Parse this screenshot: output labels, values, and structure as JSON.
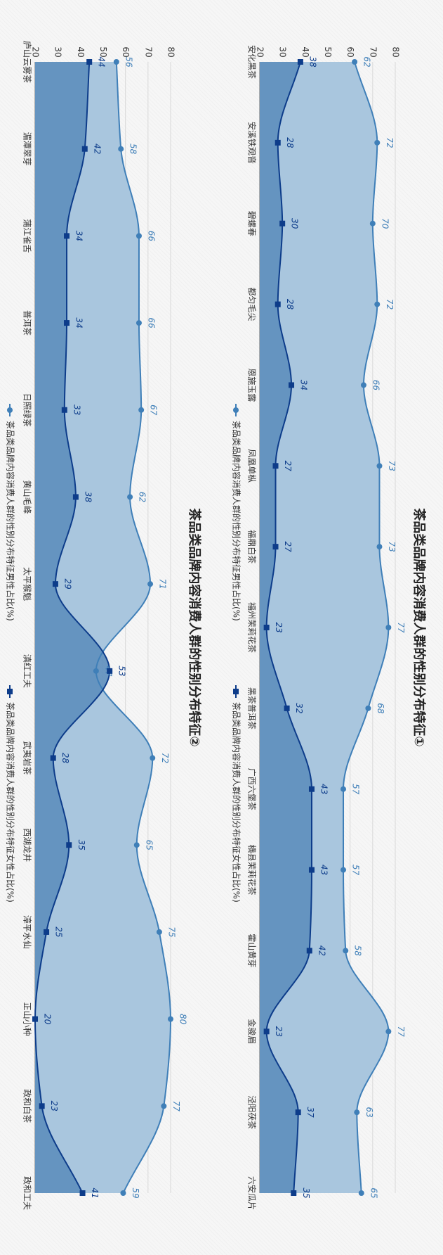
{
  "chart_data": [
    {
      "type": "area",
      "title": "茶品类品牌内容消费人群的性别分布特征①",
      "categories": [
        "安化黑茶",
        "安溪铁观音",
        "碧螺春",
        "都匀毛尖",
        "恩施玉露",
        "凤凰单枞",
        "福鼎白茶",
        "福州茉莉花茶",
        "黑茶普洱茶",
        "广西六堡茶",
        "横县茉莉花茶",
        "霍山黄芽",
        "金骏眉",
        "泾阳茯茶",
        "六安瓜片"
      ],
      "ylim": [
        20,
        80
      ],
      "yticks": [
        20,
        30,
        40,
        50,
        60,
        70,
        80
      ],
      "series": [
        {
          "name": "茶品类品牌内容消费人群的性别分布特征男性占比(%)",
          "values": [
            62,
            72,
            70,
            72,
            66,
            73,
            73,
            77,
            68,
            57,
            57,
            58,
            77,
            63,
            65
          ],
          "color": "#3f7fb8",
          "fill": "#a9c6de"
        },
        {
          "name": "茶品类品牌内容消费人群的性别分布特征女性占比(%)",
          "values": [
            38,
            28,
            30,
            28,
            34,
            27,
            27,
            23,
            32,
            43,
            43,
            42,
            23,
            37,
            35
          ],
          "color": "#0d3c8a",
          "fill": "#5f8fbd"
        }
      ]
    },
    {
      "type": "area",
      "title": "茶品类品牌内容消费人群的性别分布特征②",
      "categories": [
        "庐山云雾茶",
        "湄潭翠芽",
        "蒲江雀舌",
        "普洱茶",
        "日照绿茶",
        "黄山毛峰",
        "太平猴魁",
        "滇红工夫",
        "武夷岩茶",
        "西湖龙井",
        "漳平水仙",
        "正山小种",
        "政和白茶",
        "政和工夫"
      ],
      "ylim": [
        20,
        80
      ],
      "yticks": [
        20,
        30,
        40,
        50,
        60,
        70,
        80
      ],
      "series": [
        {
          "name": "茶品类品牌内容消费人群的性别分布特征男性占比(%)",
          "values": [
            56,
            58,
            66,
            66,
            67,
            62,
            71,
            47,
            72,
            65,
            75,
            80,
            77,
            59
          ],
          "color": "#3f7fb8",
          "fill": "#a9c6de"
        },
        {
          "name": "茶品类品牌内容消费人群的性别分布特征女性占比(%)",
          "values": [
            44,
            42,
            34,
            34,
            33,
            38,
            29,
            53,
            28,
            35,
            25,
            20,
            23,
            41
          ],
          "color": "#0d3c8a",
          "fill": "#5f8fbd"
        }
      ]
    }
  ],
  "legend_markers": [
    "circle",
    "square"
  ]
}
